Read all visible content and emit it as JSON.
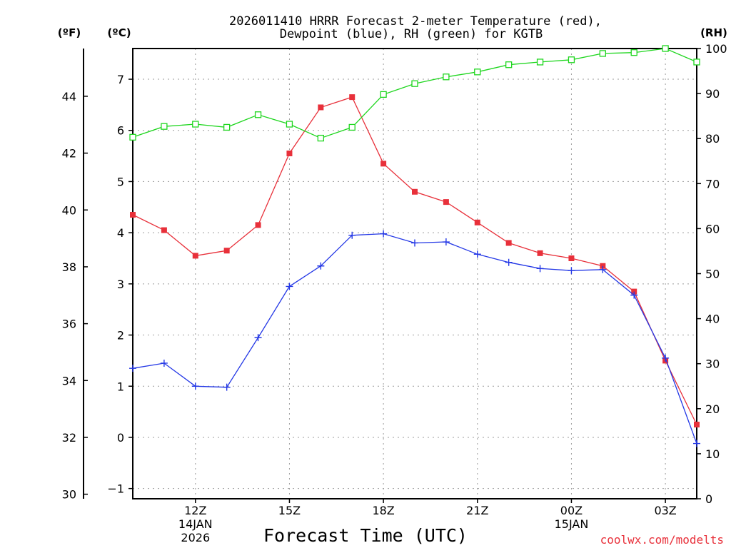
{
  "chart_data": {
    "type": "line",
    "title_line1": "2026011410 HRRR Forecast 2-meter Temperature (red),",
    "title_line2": "Dewpoint (blue), RH (green) for KGTB",
    "xlabel": "Forecast Time (UTC)",
    "credit": "coolwx.com/modelts",
    "x_hours": [
      10,
      11,
      12,
      13,
      14,
      15,
      16,
      17,
      18,
      19,
      20,
      21,
      22,
      23,
      24,
      25,
      26,
      27,
      28
    ],
    "x_ticks": [
      {
        "hour": 12,
        "label": "12Z",
        "sub1": "14JAN",
        "sub2": "2026"
      },
      {
        "hour": 15,
        "label": "15Z",
        "sub1": "",
        "sub2": ""
      },
      {
        "hour": 18,
        "label": "18Z",
        "sub1": "",
        "sub2": ""
      },
      {
        "hour": 21,
        "label": "21Z",
        "sub1": "",
        "sub2": ""
      },
      {
        "hour": 24,
        "label": "00Z",
        "sub1": "15JAN",
        "sub2": ""
      },
      {
        "hour": 27,
        "label": "03Z",
        "sub1": "",
        "sub2": ""
      }
    ],
    "xlim": [
      10,
      28
    ],
    "units": {
      "fahrenheit": "(ºF)",
      "celsius": "(ºC)",
      "rh": "(RH)"
    },
    "celsius_axis": {
      "ylim": [
        -1.2,
        7.6
      ],
      "ticks": [
        -1,
        0,
        1,
        2,
        3,
        4,
        5,
        6,
        7
      ]
    },
    "fahrenheit_axis": {
      "ticks": [
        30,
        32,
        34,
        36,
        38,
        40,
        42,
        44
      ]
    },
    "rh_axis": {
      "ylim": [
        0,
        100
      ],
      "ticks": [
        0,
        10,
        20,
        30,
        40,
        50,
        60,
        70,
        80,
        90,
        100
      ]
    },
    "series": [
      {
        "name": "Temperature",
        "units": "C",
        "color": "#e8303a",
        "marker": "filled-square",
        "values": [
          4.35,
          4.05,
          3.55,
          3.65,
          4.15,
          5.55,
          6.45,
          6.65,
          5.35,
          4.8,
          4.6,
          4.2,
          3.8,
          3.6,
          3.5,
          3.35,
          2.85,
          1.5,
          0.25
        ]
      },
      {
        "name": "Dewpoint",
        "units": "C",
        "color": "#2438e6",
        "marker": "plus",
        "values": [
          1.35,
          1.45,
          1.0,
          0.98,
          1.95,
          2.95,
          3.35,
          3.95,
          3.98,
          3.8,
          3.82,
          3.58,
          3.42,
          3.3,
          3.26,
          3.28,
          2.78,
          1.55,
          -0.12
        ]
      },
      {
        "name": "RH",
        "units": "%",
        "color": "#1ed61e",
        "marker": "open-square",
        "values": [
          80.3,
          82.7,
          83.2,
          82.5,
          85.3,
          83.2,
          80.1,
          82.5,
          89.8,
          92.2,
          93.7,
          94.8,
          96.4,
          97.0,
          97.5,
          98.9,
          99.1,
          100.0,
          97.0
        ]
      }
    ]
  }
}
